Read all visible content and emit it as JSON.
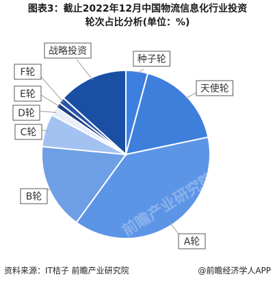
{
  "title_line1": "图表3：截止2022年12月中国物流信息化行业投资",
  "title_line2": "轮次占比分析(单位：%)",
  "source_text": "资料来源：IT桔子 前瞻产业研究院",
  "brand_text": "@前瞻经济学人APP",
  "watermark_text": "前瞻产业研究院",
  "chart_data": {
    "type": "pie",
    "categories": [
      "种子轮",
      "天使轮",
      "A轮",
      "B轮",
      "C轮",
      "D轮",
      "E轮",
      "F轮",
      "战略投资"
    ],
    "values": [
      4.2,
      17.5,
      38.3,
      16.5,
      6.3,
      1.7,
      1.0,
      1.2,
      13.3
    ],
    "colors": [
      "#3d7fe0",
      "#3f7fdc",
      "#5d95e6",
      "#6e9fe6",
      "#a3c2f2",
      "#e8eef8",
      "#1e3f85",
      "#2a55a8",
      "#1a4fa3"
    ],
    "legend": "none",
    "labels_style": "boxed callouts with leader lines"
  }
}
